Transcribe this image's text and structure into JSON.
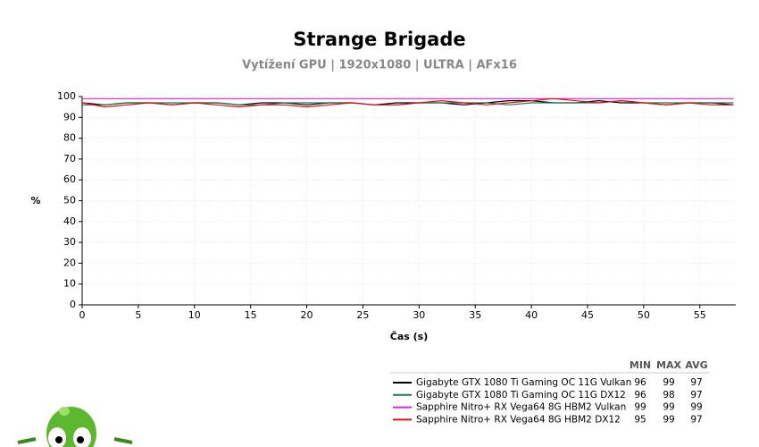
{
  "chart_data": {
    "type": "line",
    "title": "Strange Brigade",
    "subtitle": "Vytížení GPU | 1920x1080 | ULTRA | AFx16",
    "x_label": "Čas (s)",
    "y_label": "%",
    "x": [
      0,
      2,
      4,
      6,
      8,
      10,
      12,
      14,
      16,
      18,
      20,
      22,
      24,
      26,
      28,
      30,
      32,
      34,
      36,
      38,
      40,
      42,
      44,
      46,
      48,
      50,
      52,
      54,
      56,
      58
    ],
    "xlim": [
      0,
      58.2
    ],
    "xticks": [
      0,
      5,
      10,
      15,
      20,
      25,
      30,
      35,
      40,
      45,
      50,
      55
    ],
    "ylim": [
      0,
      100
    ],
    "yticks": [
      0,
      10,
      20,
      30,
      40,
      50,
      60,
      70,
      80,
      90,
      100
    ],
    "grid": true,
    "series": [
      {
        "name": "Gigabyte GTX 1080 Ti Gaming OC 11G Vulkan",
        "color": "#000000",
        "values": [
          97,
          96,
          97,
          97,
          96,
          97,
          97,
          96,
          97,
          97,
          96,
          97,
          97,
          96,
          97,
          97,
          97,
          96,
          97,
          98,
          98,
          97,
          97,
          98,
          97,
          97,
          96,
          97,
          97,
          96
        ]
      },
      {
        "name": "Gigabyte GTX 1080 Ti Gaming OC 11G DX12",
        "color": "#1a7a55",
        "values": [
          96,
          96,
          97,
          97,
          97,
          97,
          97,
          96,
          96,
          97,
          97,
          97,
          97,
          96,
          96,
          97,
          97,
          97,
          97,
          96,
          97,
          97,
          97,
          97,
          98,
          97,
          97,
          97,
          97,
          97
        ]
      },
      {
        "name": "Sapphire Nitro+ RX Vega64 8G HBM2 Vulkan",
        "color": "#e020e0",
        "values": [
          99,
          99,
          99,
          99,
          99,
          99,
          99,
          99,
          99,
          99,
          99,
          99,
          99,
          99,
          99,
          99,
          99,
          99,
          99,
          99,
          99,
          99,
          99,
          99,
          99,
          99,
          99,
          99,
          99,
          99
        ]
      },
      {
        "name": "Sapphire Nitro+ RX Vega64 8G HBM2 DX12",
        "color": "#e01010",
        "values": [
          97,
          95,
          96,
          97,
          96,
          97,
          96,
          95,
          96,
          96,
          95,
          96,
          97,
          96,
          96,
          97,
          98,
          97,
          96,
          97,
          98,
          99,
          98,
          97,
          98,
          97,
          96,
          97,
          96,
          96
        ]
      }
    ],
    "stats": {
      "columns": [
        "MIN",
        "MAX",
        "AVG"
      ],
      "rows": [
        [
          96,
          99,
          97
        ],
        [
          96,
          98,
          97
        ],
        [
          99,
          99,
          99
        ],
        [
          95,
          99,
          97
        ]
      ]
    }
  }
}
